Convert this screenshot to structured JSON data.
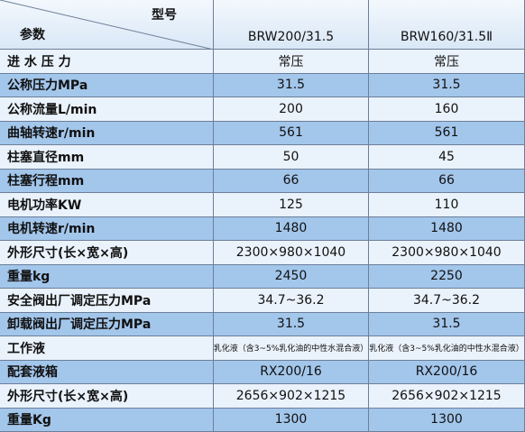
{
  "header": {
    "model_label": "型号",
    "param_label": "参数",
    "columns": [
      "BRW200/31.5",
      "BRW160/31.5Ⅱ"
    ]
  },
  "table": {
    "rows": [
      [
        "进 水 压 力",
        "常压",
        "常压"
      ],
      [
        "公称压力MPa",
        "31.5",
        "31.5"
      ],
      [
        "公称流量L/min",
        "200",
        "160"
      ],
      [
        "曲轴转速r/min",
        "561",
        "561"
      ],
      [
        "柱塞直径mm",
        "50",
        "45"
      ],
      [
        "柱塞行程mm",
        "66",
        "66"
      ],
      [
        "电机功率KW",
        "125",
        "110"
      ],
      [
        "电机转速r/min",
        "1480",
        "1480"
      ],
      [
        "外形尺寸(长×宽×高)",
        "2300×980×1040",
        "2300×980×1040"
      ],
      [
        "重量kg",
        "2450",
        "2250"
      ],
      [
        "安全阀出厂调定压力MPa",
        "34.7~36.2",
        "34.7~36.2"
      ],
      [
        "卸载阀出厂调定压力MPa",
        "31.5",
        "31.5"
      ],
      [
        "工作液",
        "乳化液（含3~5%乳化油的中性水混合液）",
        "乳化液（含3~5%乳化油的中性水混合液）"
      ],
      [
        "配套液箱",
        "RX200/16",
        "RX200/16"
      ],
      [
        "外形尺寸(长×宽×高)",
        "2656×902×1215",
        "2656×902×1215"
      ],
      [
        "重量Kg",
        "1300",
        "1300"
      ]
    ]
  }
}
